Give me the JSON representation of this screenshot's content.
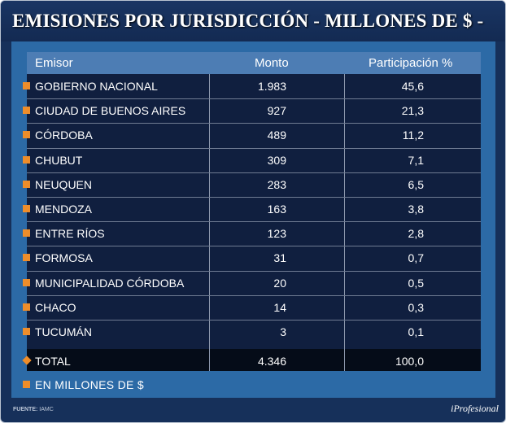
{
  "title": "EMISIONES POR JURISDICCIÓN - MILLONES DE $ -",
  "chart_data": {
    "type": "table",
    "title": "EMISIONES POR JURISDICCIÓN - MILLONES DE $ -",
    "columns": [
      "Emisor",
      "Monto",
      "Participación %"
    ],
    "rows": [
      {
        "emisor": "GOBIERNO NACIONAL",
        "monto": "1.983",
        "participacion": "45,6"
      },
      {
        "emisor": "CIUDAD DE BUENOS AIRES",
        "monto": "927",
        "participacion": "21,3"
      },
      {
        "emisor": "CÓRDOBA",
        "monto": "489",
        "participacion": "11,2"
      },
      {
        "emisor": "CHUBUT",
        "monto": "309",
        "participacion": "7,1"
      },
      {
        "emisor": "NEUQUEN",
        "monto": "283",
        "participacion": "6,5"
      },
      {
        "emisor": "MENDOZA",
        "monto": "163",
        "participacion": "3,8"
      },
      {
        "emisor": "ENTRE RÍOS",
        "monto": "123",
        "participacion": "2,8"
      },
      {
        "emisor": "FORMOSA",
        "monto": "31",
        "participacion": "0,7"
      },
      {
        "emisor": "MUNICIPALIDAD CÓRDOBA",
        "monto": "20",
        "participacion": "0,5"
      },
      {
        "emisor": "CHACO",
        "monto": "14",
        "participacion": "0,3"
      },
      {
        "emisor": "TUCUMÁN",
        "monto": "3",
        "participacion": "0,1"
      }
    ],
    "total": {
      "emisor": "TOTAL",
      "monto": "4.346",
      "participacion": "100,0"
    }
  },
  "footnote": "EN MILLONES DE $",
  "source": {
    "label": "FUENTE:",
    "value": "IAMC"
  },
  "brand": "iProfesional",
  "colors": {
    "background": "#16305a",
    "panel": "#2c6aa6",
    "header": "#4d7db4",
    "table": "#101f3f",
    "accent": "#ee8d2a"
  },
  "icons": {
    "row_bullet": "orange-square-icon",
    "total_bullet": "orange-diamond-icon"
  }
}
